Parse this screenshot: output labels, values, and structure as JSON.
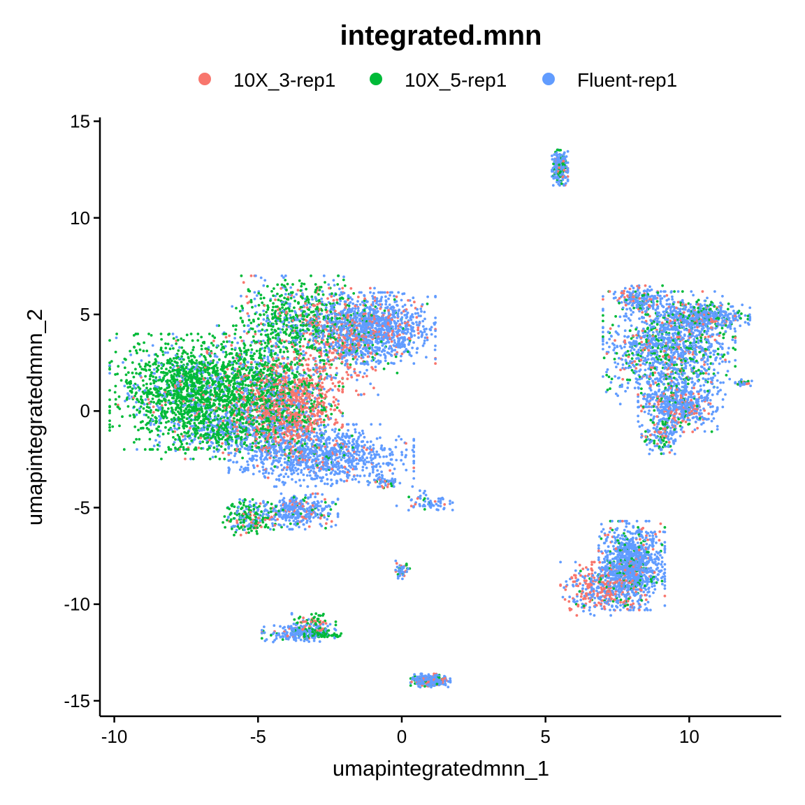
{
  "chart_data": {
    "type": "scatter",
    "title": "integrated.mnn",
    "xlabel": "umapintegratedmnn_1",
    "ylabel": "umapintegratedmnn_2",
    "xlim": [
      -10.5,
      13.2
    ],
    "ylim": [
      -15.8,
      15.2
    ],
    "xticks": [
      -10,
      -5,
      0,
      5,
      10
    ],
    "yticks": [
      -15,
      -10,
      -5,
      0,
      5,
      10,
      15
    ],
    "legend_position": "top",
    "grid": false,
    "series": [
      {
        "name": "10X_3-rep1",
        "color": "#F8766D"
      },
      {
        "name": "10X_5-rep1",
        "color": "#00BA38"
      },
      {
        "name": "Fluent-rep1",
        "color": "#619CFF"
      }
    ],
    "clusters": [
      {
        "cx": -7.4,
        "cy": 1.0,
        "sx": 1.2,
        "sy": 1.3,
        "n": [
          40,
          1300,
          220
        ]
      },
      {
        "cx": -5.0,
        "cy": 1.2,
        "sx": 1.0,
        "sy": 1.4,
        "n": [
          120,
          520,
          200
        ]
      },
      {
        "cx": -3.9,
        "cy": 0.2,
        "sx": 0.8,
        "sy": 1.1,
        "n": [
          700,
          170,
          180
        ]
      },
      {
        "cx": -3.6,
        "cy": 4.7,
        "sx": 1.0,
        "sy": 1.0,
        "n": [
          70,
          450,
          200
        ]
      },
      {
        "cx": -2.0,
        "cy": 3.6,
        "sx": 0.8,
        "sy": 1.2,
        "n": [
          230,
          60,
          130
        ]
      },
      {
        "cx": -0.9,
        "cy": 4.3,
        "sx": 0.9,
        "sy": 0.8,
        "n": [
          120,
          20,
          900
        ]
      },
      {
        "cx": -2.8,
        "cy": -2.3,
        "sx": 1.4,
        "sy": 0.7,
        "n": [
          70,
          20,
          900
        ]
      },
      {
        "cx": -5.9,
        "cy": -1.1,
        "sx": 1.1,
        "sy": 0.6,
        "n": [
          30,
          200,
          250
        ]
      },
      {
        "cx": -5.3,
        "cy": -5.5,
        "sx": 0.4,
        "sy": 0.4,
        "n": [
          30,
          130,
          60
        ]
      },
      {
        "cx": -3.6,
        "cy": -5.2,
        "sx": 0.6,
        "sy": 0.4,
        "n": [
          40,
          30,
          280
        ]
      },
      {
        "cx": -0.6,
        "cy": -3.7,
        "sx": 0.25,
        "sy": 0.15,
        "n": [
          10,
          10,
          30
        ]
      },
      {
        "cx": 0.9,
        "cy": -4.7,
        "sx": 0.5,
        "sy": 0.25,
        "n": [
          5,
          5,
          50
        ]
      },
      {
        "cx": 0.0,
        "cy": -8.3,
        "sx": 0.15,
        "sy": 0.25,
        "n": [
          10,
          10,
          30
        ]
      },
      {
        "cx": -3.6,
        "cy": -11.5,
        "sx": 0.55,
        "sy": 0.2,
        "n": [
          20,
          20,
          180
        ]
      },
      {
        "cx": -3.1,
        "cy": -11.1,
        "sx": 0.35,
        "sy": 0.3,
        "n": [
          20,
          60,
          20
        ]
      },
      {
        "cx": -2.8,
        "cy": -11.6,
        "sx": 0.3,
        "sy": 0.06,
        "n": [
          0,
          50,
          5
        ]
      },
      {
        "cx": 1.0,
        "cy": -13.95,
        "sx": 0.3,
        "sy": 0.15,
        "n": [
          60,
          30,
          250
        ]
      },
      {
        "cx": 5.5,
        "cy": 12.6,
        "sx": 0.12,
        "sy": 0.4,
        "n": [
          30,
          60,
          200
        ]
      },
      {
        "cx": 9.3,
        "cy": 3.2,
        "sx": 1.0,
        "sy": 1.3,
        "n": [
          150,
          260,
          900
        ]
      },
      {
        "cx": 10.5,
        "cy": 4.9,
        "sx": 0.7,
        "sy": 0.35,
        "n": [
          40,
          80,
          320
        ]
      },
      {
        "cx": 9.6,
        "cy": 0.3,
        "sx": 0.6,
        "sy": 0.6,
        "n": [
          120,
          40,
          400
        ]
      },
      {
        "cx": 9.0,
        "cy": -1.3,
        "sx": 0.3,
        "sy": 0.4,
        "n": [
          20,
          40,
          80
        ]
      },
      {
        "cx": 8.3,
        "cy": 5.8,
        "sx": 0.4,
        "sy": 0.3,
        "n": [
          30,
          20,
          140
        ]
      },
      {
        "cx": 8.0,
        "cy": -8.0,
        "sx": 0.5,
        "sy": 1.0,
        "n": [
          100,
          100,
          900
        ]
      },
      {
        "cx": 6.9,
        "cy": -9.2,
        "sx": 0.6,
        "sy": 0.6,
        "n": [
          180,
          20,
          160
        ]
      },
      {
        "cx": 11.9,
        "cy": 1.45,
        "sx": 0.12,
        "sy": 0.08,
        "n": [
          6,
          8,
          18
        ]
      }
    ]
  }
}
